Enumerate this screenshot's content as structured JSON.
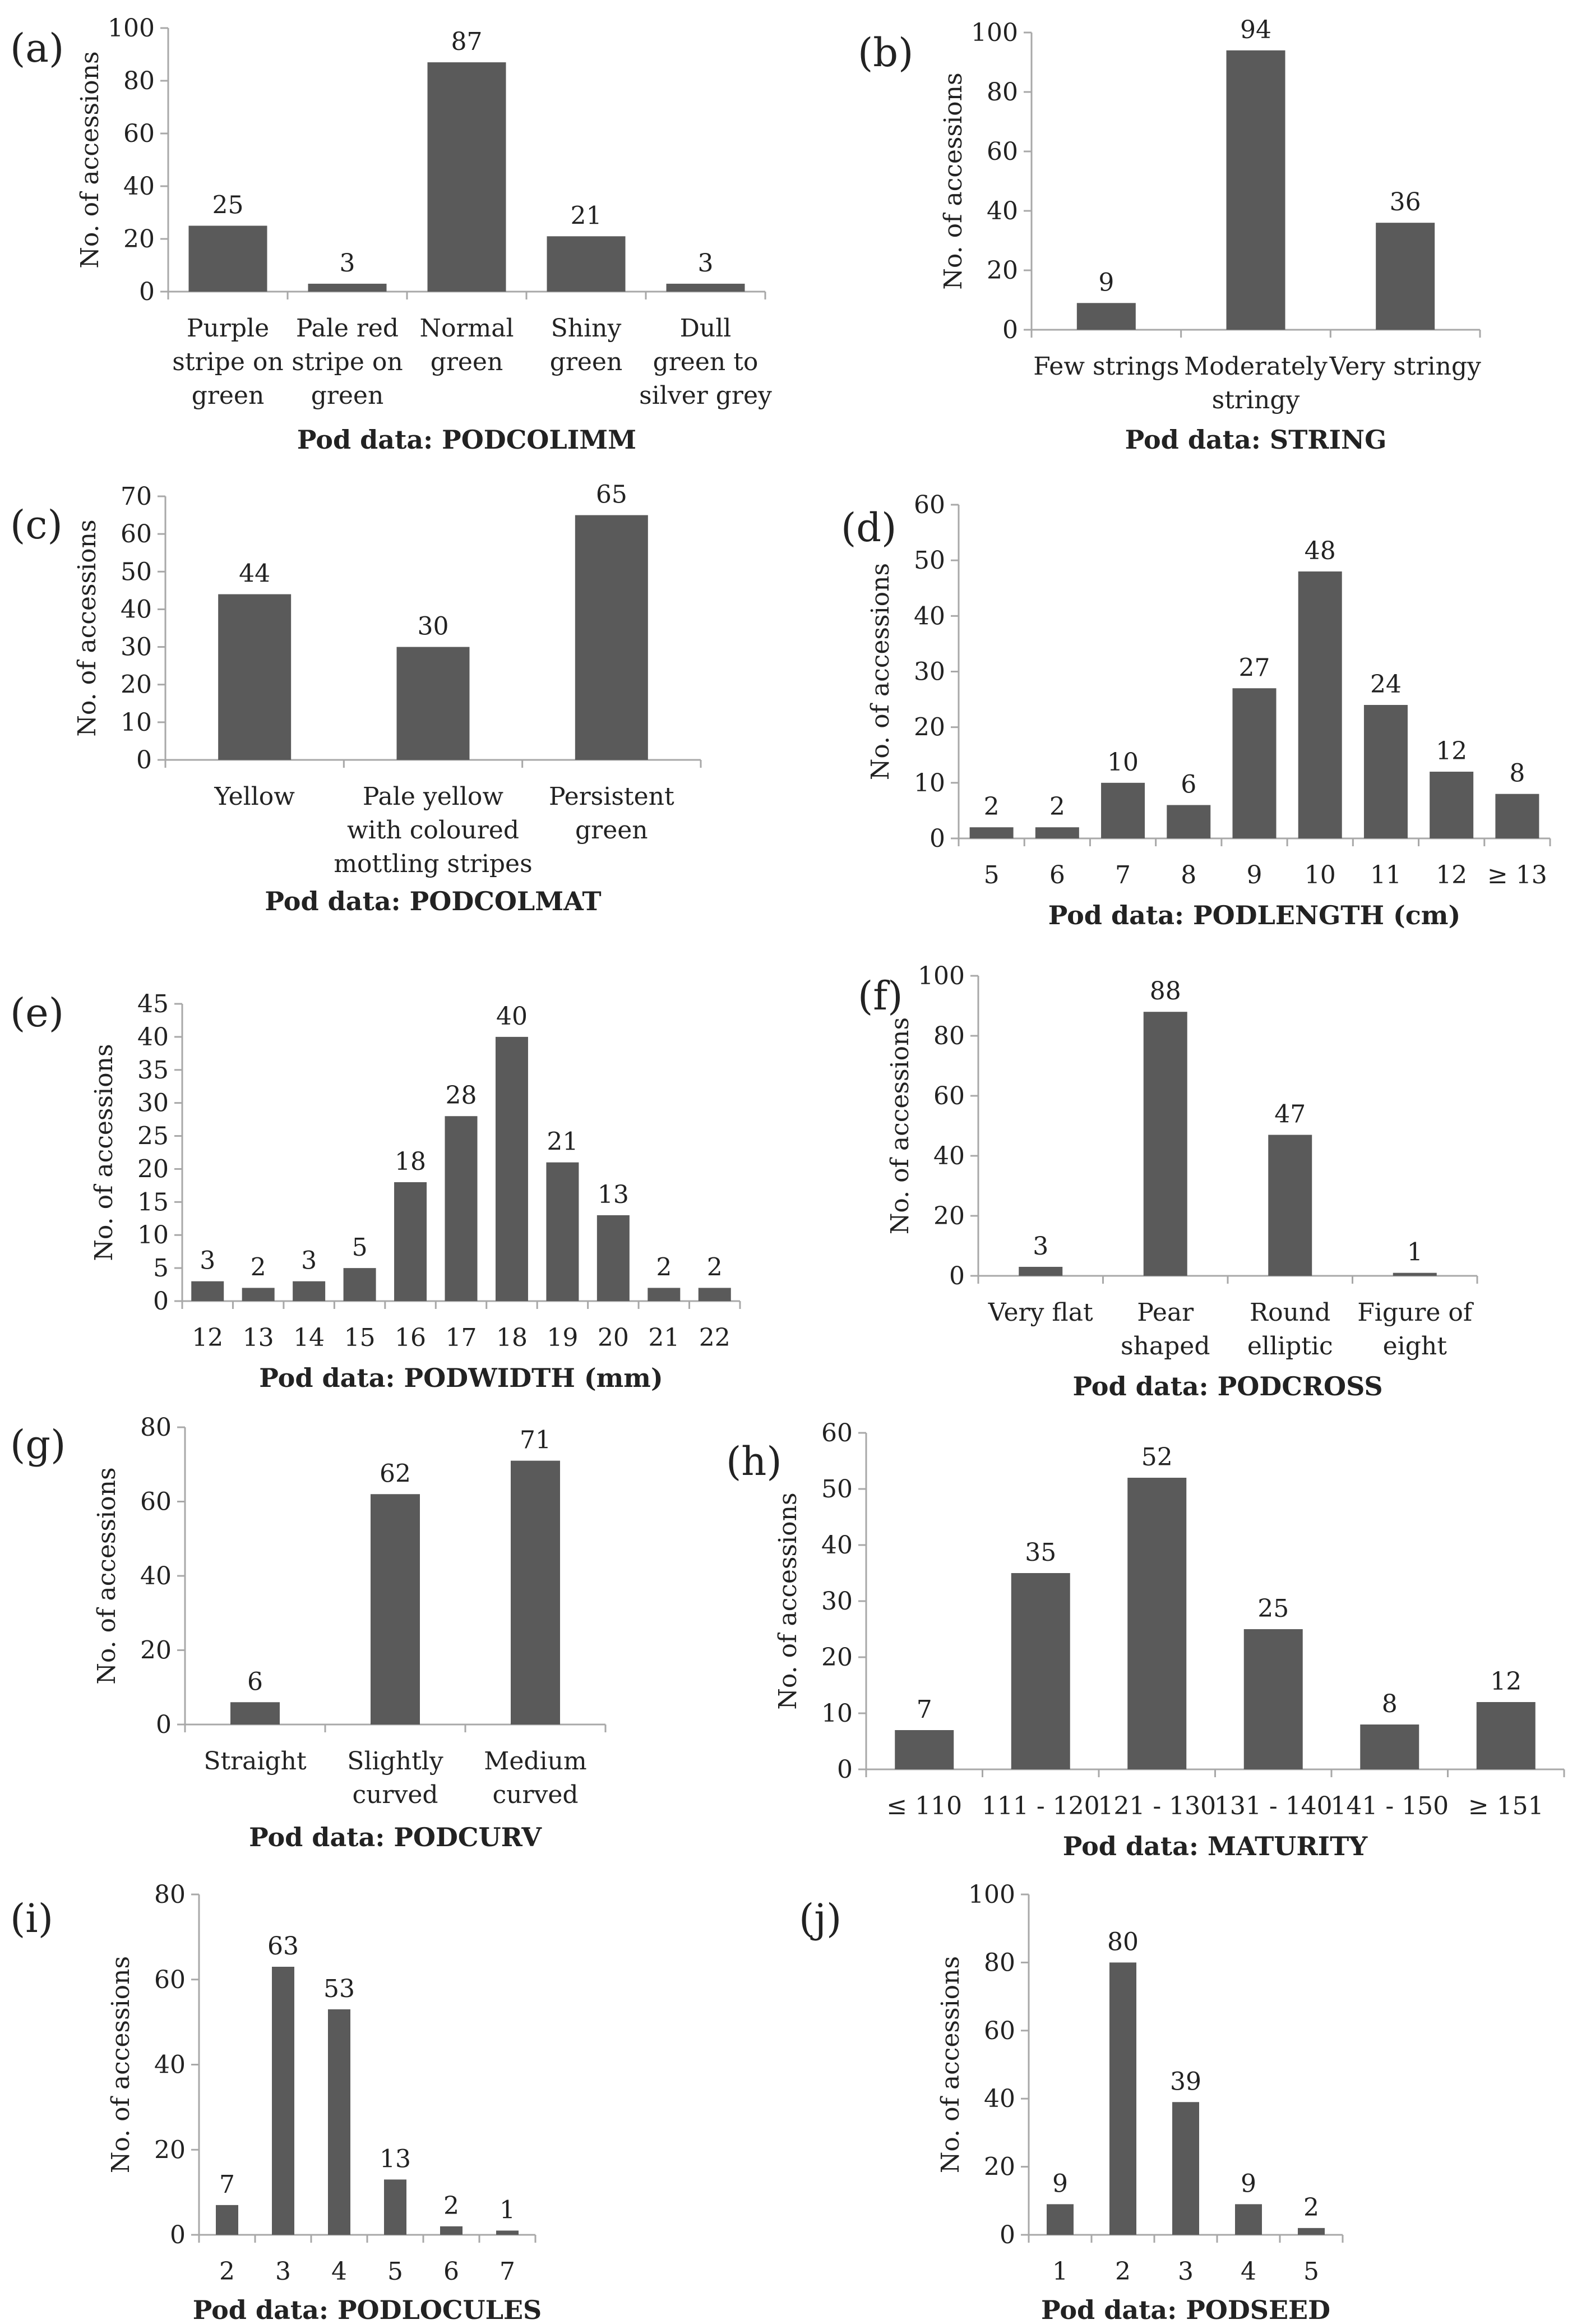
{
  "colors": {
    "bar": "#5a5a5a",
    "axis": "#a8a8a8",
    "text": "#222222"
  },
  "chart_data": [
    {
      "panel": "(a)",
      "type": "bar",
      "categories": [
        "Purple\nstripe on\ngreen",
        "Pale red\nstripe on\ngreen",
        "Normal\ngreen",
        "Shiny\ngreen",
        "Dull\ngreen to\nsilver grey"
      ],
      "values": [
        25,
        3,
        87,
        21,
        3
      ],
      "ylim": [
        0,
        100
      ],
      "yticks": [
        0,
        20,
        40,
        60,
        80,
        100
      ],
      "ylabel": "No. of accessions",
      "xlabel": "Pod data: PODCOLIMM",
      "grid": false,
      "legend": "none"
    },
    {
      "panel": "(b)",
      "type": "bar",
      "categories": [
        "Few strings",
        "Moderately\nstringy",
        "Very stringy"
      ],
      "values": [
        9,
        94,
        36
      ],
      "ylim": [
        0,
        100
      ],
      "yticks": [
        0,
        20,
        40,
        60,
        80,
        100
      ],
      "ylabel": "No. of accessions",
      "xlabel": "Pod data: STRING",
      "grid": false,
      "legend": "none"
    },
    {
      "panel": "(c)",
      "type": "bar",
      "categories": [
        "Yellow",
        "Pale yellow\nwith coloured\nmottling stripes",
        "Persistent\ngreen"
      ],
      "values": [
        44,
        30,
        65
      ],
      "ylim": [
        0,
        70
      ],
      "yticks": [
        0,
        10,
        20,
        30,
        40,
        50,
        60,
        70
      ],
      "ylabel": "No. of accessions",
      "xlabel": "Pod data: PODCOLMAT",
      "grid": false,
      "legend": "none"
    },
    {
      "panel": "(d)",
      "type": "bar",
      "categories": [
        "5",
        "6",
        "7",
        "8",
        "9",
        "10",
        "11",
        "12",
        "≥ 13"
      ],
      "values": [
        2,
        2,
        10,
        6,
        27,
        48,
        24,
        12,
        8
      ],
      "ylim": [
        0,
        60
      ],
      "yticks": [
        0,
        10,
        20,
        30,
        40,
        50,
        60
      ],
      "ylabel": "No. of accessions",
      "xlabel": "Pod data: PODLENGTH (cm)",
      "grid": false,
      "legend": "none"
    },
    {
      "panel": "(e)",
      "type": "bar",
      "categories": [
        "12",
        "13",
        "14",
        "15",
        "16",
        "17",
        "18",
        "19",
        "20",
        "21",
        "22"
      ],
      "values": [
        3,
        2,
        3,
        5,
        18,
        28,
        40,
        21,
        13,
        2,
        2
      ],
      "ylim": [
        0,
        45
      ],
      "yticks": [
        0,
        5,
        10,
        15,
        20,
        25,
        30,
        35,
        40,
        45
      ],
      "ylabel": "No. of accessions",
      "xlabel": "Pod data: PODWIDTH (mm)",
      "grid": false,
      "legend": "none"
    },
    {
      "panel": "(f)",
      "type": "bar",
      "categories": [
        "Very flat",
        "Pear\nshaped",
        "Round\nelliptic",
        "Figure of\neight"
      ],
      "values": [
        3,
        88,
        47,
        1
      ],
      "ylim": [
        0,
        100
      ],
      "yticks": [
        0,
        20,
        40,
        60,
        80,
        100
      ],
      "ylabel": "No. of accessions",
      "xlabel": "Pod data: PODCROSS",
      "grid": false,
      "legend": "none"
    },
    {
      "panel": "(g)",
      "type": "bar",
      "categories": [
        "Straight",
        "Slightly\ncurved",
        "Medium\ncurved"
      ],
      "values": [
        6,
        62,
        71
      ],
      "ylim": [
        0,
        80
      ],
      "yticks": [
        0,
        20,
        40,
        60,
        80
      ],
      "ylabel": "No. of accessions",
      "xlabel": "Pod data: PODCURV",
      "grid": false,
      "legend": "none"
    },
    {
      "panel": "(h)",
      "type": "bar",
      "categories": [
        "≤ 110",
        "111 - 120",
        "121 - 130",
        "131 - 140",
        "141 - 150",
        "≥ 151"
      ],
      "values": [
        7,
        35,
        52,
        25,
        8,
        12
      ],
      "ylim": [
        0,
        60
      ],
      "yticks": [
        0,
        10,
        20,
        30,
        40,
        50,
        60
      ],
      "ylabel": "No. of accessions",
      "xlabel": "Pod data: MATURITY",
      "grid": false,
      "legend": "none"
    },
    {
      "panel": "(i)",
      "type": "bar",
      "categories": [
        "2",
        "3",
        "4",
        "5",
        "6",
        "7"
      ],
      "values": [
        7,
        63,
        53,
        13,
        2,
        1
      ],
      "ylim": [
        0,
        80
      ],
      "yticks": [
        0,
        20,
        40,
        60,
        80
      ],
      "ylabel": "No. of accessions",
      "xlabel": "Pod data: PODLOCULES",
      "grid": false,
      "legend": "none"
    },
    {
      "panel": "(j)",
      "type": "bar",
      "categories": [
        "1",
        "2",
        "3",
        "4",
        "5"
      ],
      "values": [
        9,
        80,
        39,
        9,
        2
      ],
      "ylim": [
        0,
        100
      ],
      "yticks": [
        0,
        20,
        40,
        60,
        80,
        100
      ],
      "ylabel": "No. of accessions",
      "xlabel": "Pod data: PODSEED",
      "grid": false,
      "legend": "none"
    }
  ]
}
